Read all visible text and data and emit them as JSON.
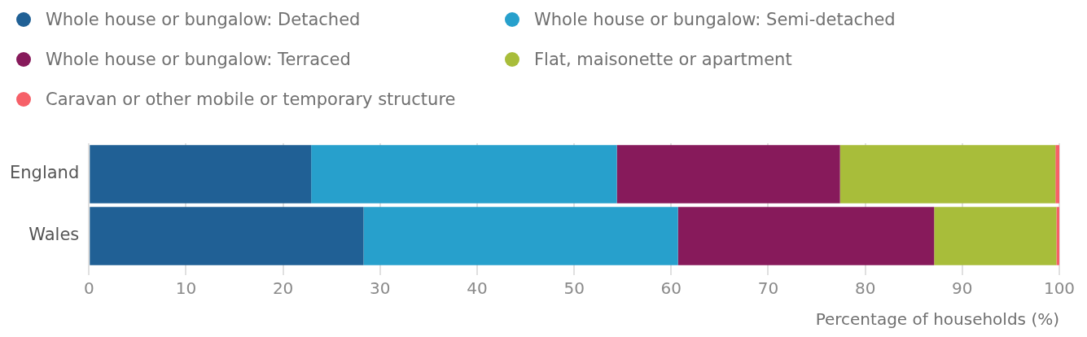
{
  "chart_data": {
    "type": "bar",
    "orientation": "horizontal",
    "stacked": true,
    "categories": [
      "England",
      "Wales"
    ],
    "series": [
      {
        "name": "Whole house or bungalow: Detached",
        "color": "#206095",
        "values": [
          22.9,
          28.3
        ]
      },
      {
        "name": "Whole house or bungalow: Semi-detached",
        "color": "#27a0cc",
        "values": [
          31.5,
          32.4
        ]
      },
      {
        "name": "Whole house or bungalow: Terraced",
        "color": "#871a5b",
        "values": [
          23.0,
          26.4
        ]
      },
      {
        "name": "Flat, maisonette or apartment",
        "color": "#a8bd3a",
        "values": [
          22.2,
          12.6
        ]
      },
      {
        "name": "Caravan or other mobile or temporary structure",
        "color": "#f66068",
        "values": [
          0.4,
          0.3
        ]
      }
    ],
    "xlim": [
      0,
      100
    ],
    "xticks": [
      0,
      10,
      20,
      30,
      40,
      50,
      60,
      70,
      80,
      90,
      100
    ],
    "xlabel": "Percentage of households (%)",
    "grid": "x",
    "legend": "top left"
  }
}
